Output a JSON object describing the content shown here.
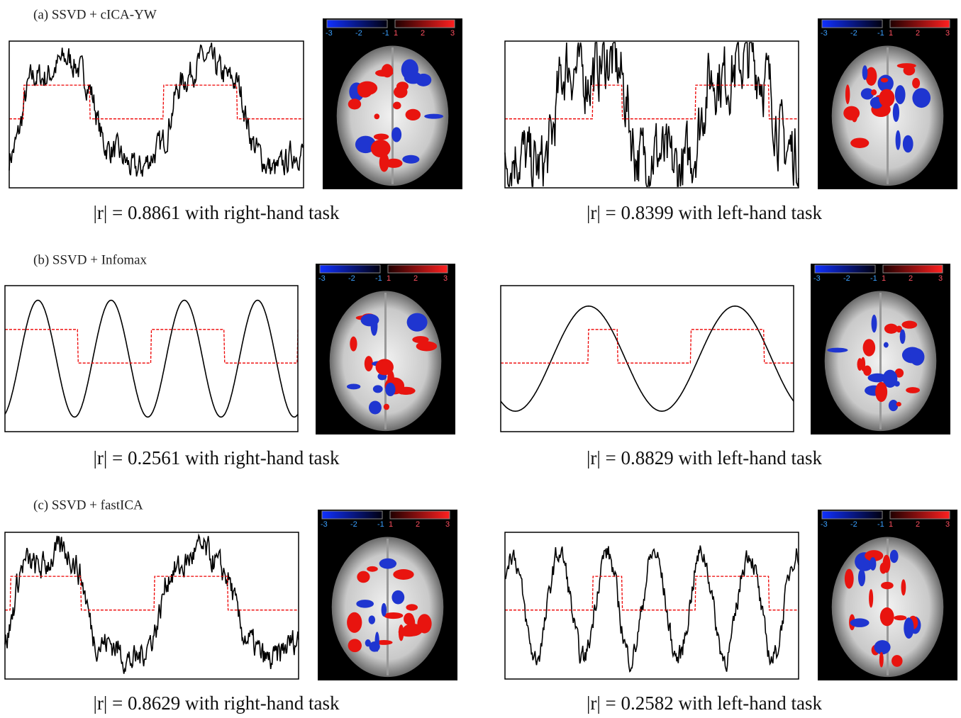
{
  "rows": [
    {
      "label": "(a) SSVD + cICA-YW",
      "panels": [
        {
          "caption": "|r| = 0.8861 with right-hand task"
        },
        {
          "caption": "|r| = 0.8399 with left-hand task"
        }
      ]
    },
    {
      "label": "(b) SSVD + Infomax",
      "panels": [
        {
          "caption": "|r| = 0.2561 with right-hand task"
        },
        {
          "caption": "|r| = 0.8829 with left-hand task"
        }
      ]
    },
    {
      "label": "(c) SSVD + fastICA",
      "panels": [
        {
          "caption": "|r| = 0.8629 with right-hand task"
        },
        {
          "caption": "|r| = 0.2582 with left-hand task"
        }
      ]
    }
  ],
  "colorbar_labels": [
    "-3",
    "-2",
    "-1",
    "1",
    "2",
    "3"
  ]
}
